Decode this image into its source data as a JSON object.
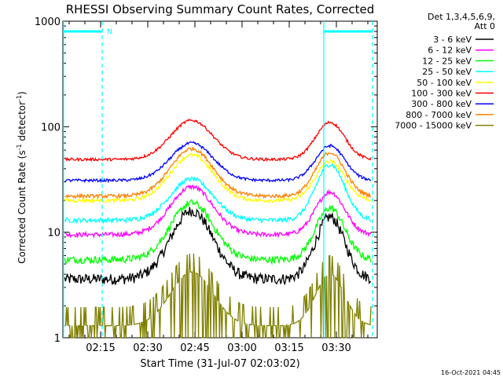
{
  "chart_data": {
    "type": "line",
    "title": "RHESSI Observing Summary Count Rates, Corrected",
    "xlabel": "Start Time (31-Jul-07 02:03:02)",
    "ylabel_main": "Corrected Count Rate (s",
    "ylabel_sup1": "-1",
    "ylabel_mid": " detector",
    "ylabel_sup2": "-1",
    "ylabel_end": ")",
    "yscale": "log",
    "ylim": [
      1,
      1000
    ],
    "xlim_minutes": [
      3.0,
      103.0
    ],
    "y_ticks": [
      {
        "label": "1",
        "value": 1
      },
      {
        "label": "10",
        "value": 10
      },
      {
        "label": "100",
        "value": 100
      },
      {
        "label": "1000",
        "value": 1000
      }
    ],
    "x_ticks": [
      {
        "label": "02:15",
        "minute": 15
      },
      {
        "label": "02:30",
        "minute": 30
      },
      {
        "label": "02:45",
        "minute": 45
      },
      {
        "label": "03:00",
        "minute": 60
      },
      {
        "label": "03:15",
        "minute": 75
      },
      {
        "label": "03:30",
        "minute": 90
      }
    ],
    "legend_header": [
      "Det 1,3,4,5,6,9,",
      "Att 0"
    ],
    "series": [
      {
        "name": "3 - 6 keV",
        "color": "#000000",
        "night": 3.6,
        "peak1": 16,
        "peak2": 14,
        "noise": 0.12
      },
      {
        "name": "6 - 12 keV",
        "color": "#ff00ff",
        "night": 9.5,
        "peak1": 27,
        "peak2": 24,
        "noise": 0.05
      },
      {
        "name": "12 - 25 keV",
        "color": "#00ff00",
        "night": 5.5,
        "peak1": 19,
        "peak2": 17,
        "noise": 0.08
      },
      {
        "name": "25 - 50 keV",
        "color": "#00ffff",
        "night": 13,
        "peak1": 32,
        "peak2": 44,
        "noise": 0.05
      },
      {
        "name": "50 - 100 keV",
        "color": "#ffff00",
        "night": 20,
        "peak1": 54,
        "peak2": 47,
        "noise": 0.04
      },
      {
        "name": "100 - 300 keV",
        "color": "#ff0000",
        "night": 49,
        "peak1": 115,
        "peak2": 110,
        "noise": 0.03
      },
      {
        "name": "300 - 800 keV",
        "color": "#0000ff",
        "night": 31,
        "peak1": 70,
        "peak2": 66,
        "noise": 0.03
      },
      {
        "name": "800 - 7000 keV",
        "color": "#ff8000",
        "night": 22,
        "peak1": 62,
        "peak2": 57,
        "noise": 0.04
      },
      {
        "name": "7000 - 15000 keV",
        "color": "#808000",
        "night": 1.3,
        "peak1": 4.2,
        "peak2": 4.0,
        "noise": 0.5
      }
    ],
    "bars": [
      {
        "label": "N",
        "start_min": 3.0,
        "end_min": 15.5,
        "level": 800,
        "color": "#00ffff"
      },
      {
        "label": "",
        "start_min": 86.0,
        "end_min": 101.5,
        "level": 800,
        "color": "#00ffff"
      }
    ],
    "solid_lines_min": [
      3.2,
      86.0
    ],
    "dashed_lines_min": [
      15.5,
      101.5
    ],
    "peak1_center_min": 44,
    "peak2_center_min": 88
  },
  "footer": {
    "timestamp": "16-Oct-2021 04:45"
  }
}
